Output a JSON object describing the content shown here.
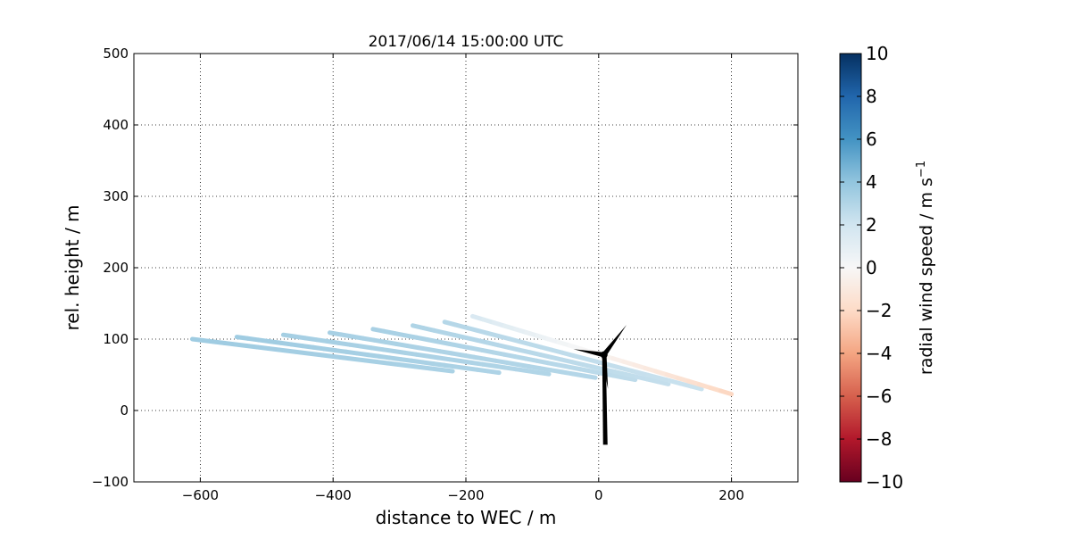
{
  "chart_data": {
    "type": "line",
    "title": "2017/06/14 15:00:00 UTC",
    "xlabel": "distance to WEC / m",
    "ylabel": "rel. height / m",
    "xlim": [
      -700,
      300
    ],
    "ylim": [
      -100,
      500
    ],
    "xticks": [
      -600,
      -400,
      -200,
      0,
      200
    ],
    "yticks": [
      -100,
      0,
      100,
      200,
      300,
      400,
      500
    ],
    "xtick_labels": [
      "−600",
      "−400",
      "−200",
      "0",
      "200"
    ],
    "ytick_labels": [
      "−100",
      "0",
      "100",
      "200",
      "300",
      "400",
      "500"
    ],
    "grid": true,
    "colorbar": {
      "label": "radial wind speed / m s",
      "label_superscript": "−1",
      "range": [
        -10,
        10
      ],
      "ticks": [
        10,
        8,
        6,
        4,
        2,
        0,
        -2,
        -4,
        -6,
        -8,
        -10
      ],
      "tick_labels": [
        "10",
        "8",
        "6",
        "4",
        "2",
        "0",
        "−2",
        "−4",
        "−6",
        "−8",
        "−10"
      ],
      "colormap": "RdBu"
    },
    "series": [
      {
        "x": [
          -612,
          -220
        ],
        "y": [
          100,
          55
        ],
        "radial_speed": [
          3.6,
          3.2
        ]
      },
      {
        "x": [
          -545,
          -150
        ],
        "y": [
          103,
          53
        ],
        "radial_speed": [
          3.6,
          3.1
        ]
      },
      {
        "x": [
          -475,
          -75
        ],
        "y": [
          106,
          51
        ],
        "radial_speed": [
          3.4,
          3.0
        ]
      },
      {
        "x": [
          -405,
          -5
        ],
        "y": [
          109,
          46
        ],
        "radial_speed": [
          3.3,
          2.9
        ]
      },
      {
        "x": [
          -340,
          55
        ],
        "y": [
          114,
          43
        ],
        "radial_speed": [
          3.3,
          2.6
        ]
      },
      {
        "x": [
          -280,
          105
        ],
        "y": [
          119,
          37
        ],
        "radial_speed": [
          3.1,
          2.4
        ]
      },
      {
        "x": [
          -232,
          155
        ],
        "y": [
          124,
          30
        ],
        "radial_speed": [
          2.9,
          2.2
        ]
      },
      {
        "x": [
          -190,
          200
        ],
        "y": [
          132,
          23
        ],
        "radial_speed": [
          1.6,
          -2.2
        ]
      }
    ],
    "turbine": {
      "hub": [
        8,
        78
      ],
      "tower_base": [
        10,
        -48
      ],
      "blade_tips": [
        [
          42,
          120
        ],
        [
          -38,
          86
        ],
        [
          14,
          30
        ]
      ]
    }
  }
}
